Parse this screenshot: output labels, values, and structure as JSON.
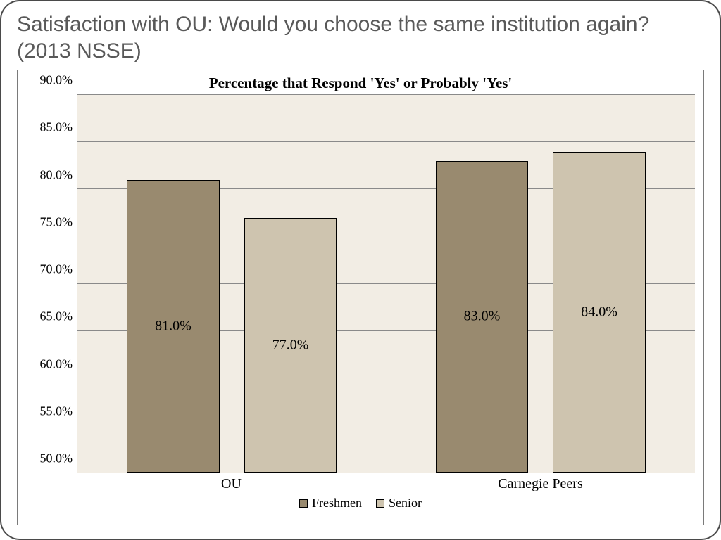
{
  "slide": {
    "title": "Satisfaction with OU: Would you choose the same institution again? (2013 NSSE)",
    "title_fontsize": 30,
    "title_color": "#595959"
  },
  "chart": {
    "type": "bar",
    "title": "Percentage that Respond 'Yes' or Probably 'Yes'",
    "title_fontsize": 21,
    "categories": [
      "OU",
      "Carnegie Peers"
    ],
    "series": [
      {
        "name": "Freshmen",
        "color": "#998a6f",
        "values": [
          81.0,
          83.0
        ]
      },
      {
        "name": "Senior",
        "color": "#cec4af",
        "values": [
          77.0,
          84.0
        ]
      }
    ],
    "value_format_suffix": "%",
    "value_decimals": 1,
    "ylim": [
      50.0,
      90.0
    ],
    "ytick_step": 5.0,
    "y_tick_labels": [
      "50.0%",
      "55.0%",
      "60.0%",
      "65.0%",
      "70.0%",
      "75.0%",
      "80.0%",
      "85.0%",
      "90.0%"
    ],
    "tick_fontsize": 18,
    "category_fontsize": 20,
    "bar_label_fontsize": 20,
    "legend_fontsize": 18,
    "plot_background": "#f2ede4",
    "grid_color": "#8a8a8a",
    "axis_color": "#7a7a7a",
    "bar_width_pct": 15,
    "bar_gap_pct": 4,
    "group_positions_pct": [
      25,
      75
    ]
  }
}
